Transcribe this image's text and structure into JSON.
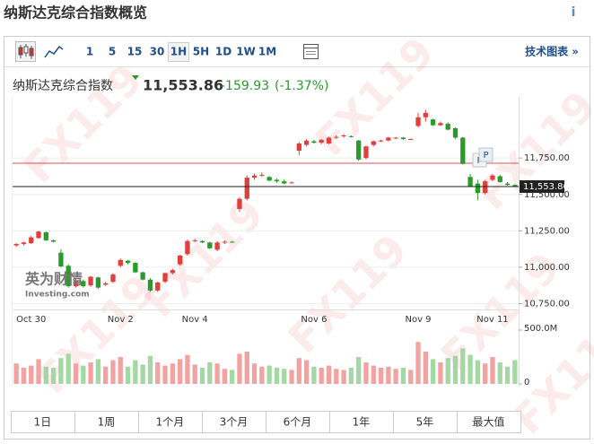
{
  "header": {
    "title": "纳斯达克综合指数概览",
    "info": "i"
  },
  "toolbar": {
    "intervals": [
      "1",
      "5",
      "15",
      "30",
      "1H",
      "5H",
      "1D",
      "1W",
      "1M"
    ],
    "selected": 4,
    "tech_chart": "技术图表 »"
  },
  "quote": {
    "name": "纳斯达克综合指数",
    "change": "-159.93",
    "change_pct": "(-1.37%)",
    "change_color": "#2a9a2a"
  },
  "watermark": {
    "text": "FX119",
    "logo_cn": "英为财情",
    "logo_en": "Investing.com"
  },
  "ranges": [
    "1日",
    "1周",
    "1个月",
    "3个月",
    "6个月",
    "1年",
    "5年",
    "最大值"
  ],
  "chart_data": [
    {
      "type": "candlestick",
      "categories": [
        null,
        null,
        "Oct 30",
        null,
        null,
        null,
        null,
        null,
        null,
        null,
        null,
        null,
        null,
        null,
        "Nov 2",
        null,
        null,
        null,
        null,
        null,
        null,
        null,
        null,
        null,
        "Nov 4",
        null,
        null,
        null,
        null,
        null,
        null,
        null,
        null,
        null,
        null,
        null,
        null,
        null,
        null,
        null,
        "Nov 6",
        null,
        null,
        null,
        null,
        null,
        null,
        null,
        null,
        null,
        null,
        null,
        null,
        null,
        "Nov 9",
        null,
        null,
        null,
        null,
        null,
        null,
        null,
        null,
        null,
        "Nov 11",
        null,
        null,
        null
      ],
      "open": [
        11150,
        11160,
        11165,
        11200,
        11240,
        11185,
        11100,
        11010,
        10870,
        10905,
        10875,
        10930,
        10880,
        10900,
        11010,
        11045,
        11030,
        10965,
        10915,
        10840,
        10900,
        10960,
        11020,
        11090,
        11180,
        11180,
        11170,
        11120,
        11170,
        11175,
        11400,
        11470,
        11615,
        11630,
        11620,
        11600,
        11590,
        11580,
        11800,
        11840,
        11865,
        11855,
        11850,
        11890,
        11900,
        11900,
        11870,
        11750,
        11840,
        11865,
        11870,
        11885,
        11890,
        11880,
        11970,
        12030,
        12015,
        11975,
        11985,
        11955,
        11890,
        11620,
        11575,
        11510,
        11600,
        11625,
        11575,
        11565
      ],
      "high": [
        11165,
        11175,
        11215,
        11250,
        11245,
        11190,
        11125,
        11020,
        10920,
        10915,
        10940,
        10935,
        10900,
        10960,
        11060,
        11050,
        11035,
        10970,
        10925,
        10900,
        10965,
        10990,
        11085,
        11190,
        11195,
        11185,
        11175,
        11180,
        11185,
        11180,
        11480,
        11630,
        11645,
        11650,
        11625,
        11610,
        11605,
        11590,
        11860,
        11880,
        11875,
        11880,
        11895,
        11905,
        11915,
        11905,
        11875,
        11835,
        11870,
        11875,
        11895,
        11895,
        11895,
        11885,
        12060,
        12080,
        12020,
        12000,
        11995,
        11960,
        11895,
        11640,
        11600,
        11600,
        11640,
        11635,
        11585,
        11570
      ],
      "low": [
        11140,
        11150,
        11160,
        11195,
        11180,
        11170,
        11000,
        10860,
        10860,
        10860,
        10865,
        10850,
        10870,
        10890,
        11000,
        11020,
        10960,
        10910,
        10830,
        10830,
        10890,
        10950,
        11010,
        11080,
        11170,
        11165,
        11125,
        11110,
        11160,
        11170,
        11380,
        11460,
        11600,
        11620,
        11590,
        11580,
        11570,
        11575,
        11770,
        11830,
        11850,
        11845,
        11845,
        11880,
        11890,
        11890,
        11730,
        11740,
        11830,
        11860,
        11865,
        11880,
        11875,
        11875,
        11960,
        12000,
        11970,
        11970,
        11940,
        11880,
        11705,
        11550,
        11460,
        11500,
        11590,
        11580,
        11560,
        11550
      ],
      "close": [
        11160,
        11170,
        11205,
        11245,
        11185,
        11175,
        11005,
        10870,
        10910,
        10870,
        10935,
        10860,
        10890,
        10950,
        11050,
        11030,
        10965,
        10915,
        10840,
        10895,
        10960,
        10980,
        11080,
        11180,
        11185,
        11170,
        11130,
        11170,
        11175,
        11172,
        11470,
        11615,
        11630,
        11635,
        11595,
        11590,
        11575,
        11582,
        11850,
        11870,
        11855,
        11875,
        11890,
        11895,
        11905,
        11895,
        11740,
        11830,
        11865,
        11870,
        11890,
        11890,
        11880,
        11880,
        12030,
        12060,
        11975,
        11990,
        11945,
        11890,
        11710,
        11555,
        11510,
        11590,
        11630,
        11585,
        11565,
        11553.86
      ],
      "up_color": "#e0403c",
      "down_color": "#2a9a2a",
      "ylim": [
        10710,
        12170
      ],
      "yticks": [
        {
          "value": 10750,
          "label": "10,750.00"
        },
        {
          "value": 11000,
          "label": "11,000.00"
        },
        {
          "value": 11250,
          "label": "11,250.00"
        },
        {
          "value": 11500,
          "label": "11,500.00"
        },
        {
          "value": 11750,
          "label": "11,750.00"
        }
      ],
      "grid": true,
      "reference_line": {
        "value": 11714,
        "color": "#d9534f"
      },
      "last": {
        "value": 11553.86,
        "label": "11,553.86"
      },
      "annotations": [
        "P",
        "P"
      ]
    },
    {
      "type": "bar",
      "values": [
        190000000,
        150000000,
        170000000,
        230000000,
        160000000,
        150000000,
        240000000,
        280000000,
        190000000,
        170000000,
        200000000,
        230000000,
        160000000,
        220000000,
        250000000,
        160000000,
        220000000,
        180000000,
        260000000,
        200000000,
        170000000,
        190000000,
        230000000,
        270000000,
        180000000,
        150000000,
        200000000,
        190000000,
        140000000,
        130000000,
        280000000,
        300000000,
        190000000,
        160000000,
        170000000,
        150000000,
        140000000,
        130000000,
        240000000,
        220000000,
        160000000,
        150000000,
        170000000,
        140000000,
        130000000,
        150000000,
        250000000,
        200000000,
        170000000,
        150000000,
        160000000,
        140000000,
        150000000,
        130000000,
        390000000,
        300000000,
        230000000,
        200000000,
        240000000,
        260000000,
        330000000,
        270000000,
        220000000,
        190000000,
        250000000,
        200000000,
        160000000,
        220000000
      ],
      "up_color": "#f2a3a1",
      "down_color": "#a3d8a3",
      "ylim": [
        0,
        525000000
      ],
      "yticks": [
        0,
        {
          "value": 500000000,
          "label": "500.0M"
        }
      ]
    }
  ]
}
